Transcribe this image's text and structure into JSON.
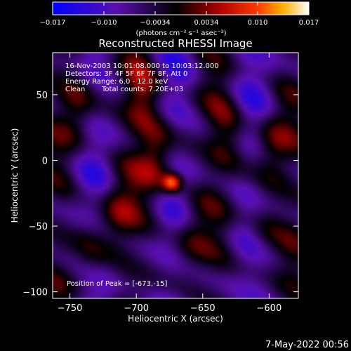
{
  "colorbar": {
    "ticks": [
      "-0.017",
      "-0.010",
      "-0.0034",
      "0.0034",
      "0.010",
      "0.017"
    ],
    "unit_label": "(photons cm⁻² s⁻¹ asec⁻²)"
  },
  "info": {
    "line1": "16-Nov-2003 10:01:08.000 to 10:03:12.000",
    "line2": "Detectors: 3F 4F 5F 6F 7F 8F, Att 0",
    "line3": "Energy Range: 6.0 - 12.0 keV",
    "line4_a": "Clean",
    "line4_b": "Total counts: 7.20E+03",
    "peak": "Position of Peak = [-673,-15]"
  },
  "footer": {
    "date": "7-May-2022 00:56"
  },
  "colors": {
    "low": "#0000ff",
    "mid": "#000000",
    "high": "#ff0000",
    "top": "#ffffff"
  },
  "chart_data": {
    "type": "heatmap",
    "title": "Reconstructed RHESSI Image",
    "xlabel": "Heliocentric X (arcsec)",
    "ylabel": "Heliocentric Y (arcsec)",
    "xlim": [
      -763,
      -578
    ],
    "ylim": [
      -105,
      82
    ],
    "xticks": [
      -750,
      -700,
      -650,
      -600
    ],
    "yticks": [
      -100,
      -50,
      0,
      50
    ],
    "xtick_labels": [
      "−750",
      "−700",
      "−650",
      "−600"
    ],
    "ytick_labels": [
      "−100",
      "−50",
      "0",
      "50"
    ],
    "zlim": [
      -0.017,
      0.017
    ],
    "peak": {
      "x": -673,
      "y": -15
    },
    "sources": [
      {
        "x": -673,
        "y": -17,
        "value": 0.017
      },
      {
        "x": -685,
        "y": 0,
        "value": 0.009
      },
      {
        "x": -695,
        "y": 50,
        "value": 0.008
      },
      {
        "x": -745,
        "y": 40,
        "value": 0.007
      },
      {
        "x": -715,
        "y": -40,
        "value": 0.007
      },
      {
        "x": -632,
        "y": 20,
        "value": 0.006
      },
      {
        "x": -660,
        "y": -60,
        "value": 0.006
      },
      {
        "x": -598,
        "y": 10,
        "value": 0.007
      },
      {
        "x": -605,
        "y": -55,
        "value": 0.006
      },
      {
        "x": -735,
        "y": -70,
        "value": 0.005
      }
    ]
  }
}
